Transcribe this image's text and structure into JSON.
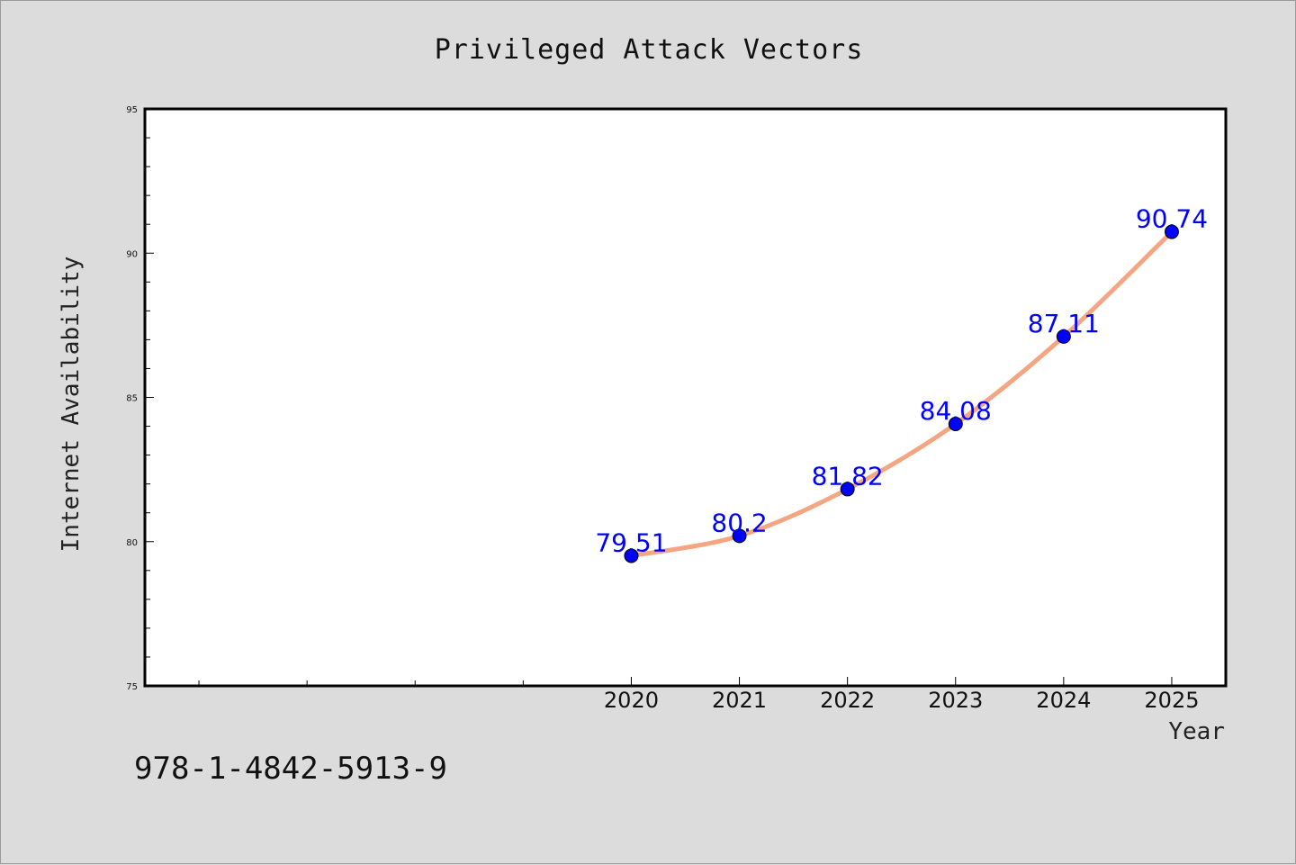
{
  "chart_data": {
    "type": "line",
    "title": "Privileged Attack Vectors",
    "xlabel": "Year",
    "ylabel": "Internet Availability",
    "x": [
      2020,
      2021,
      2022,
      2023,
      2024,
      2025
    ],
    "x_tick_labels": [
      "2020",
      "2021",
      "2022",
      "2023",
      "2024",
      "2025"
    ],
    "xlim": [
      2015.5,
      2025.5
    ],
    "ylim": [
      75,
      95
    ],
    "y_ticks": [
      75,
      80,
      85,
      90,
      95
    ],
    "y_tick_labels": [
      "75",
      "80",
      "85",
      "90",
      "95"
    ],
    "series": [
      {
        "values": [
          79.51,
          80.2,
          81.82,
          84.08,
          87.11,
          90.74
        ],
        "data_labels": [
          "79.51",
          "80.2",
          "81.82",
          "84.08",
          "87.11",
          "90.74"
        ],
        "line_color": "#f4a582",
        "marker_color": "#0000ff",
        "marker": "circle"
      }
    ],
    "grid": false,
    "legend": "none"
  },
  "footer": {
    "isbn": "978-1-4842-5913-9"
  },
  "colors": {
    "background": "#dcdcdc",
    "plot_background": "#ffffff",
    "label_color": "#0000ff"
  }
}
